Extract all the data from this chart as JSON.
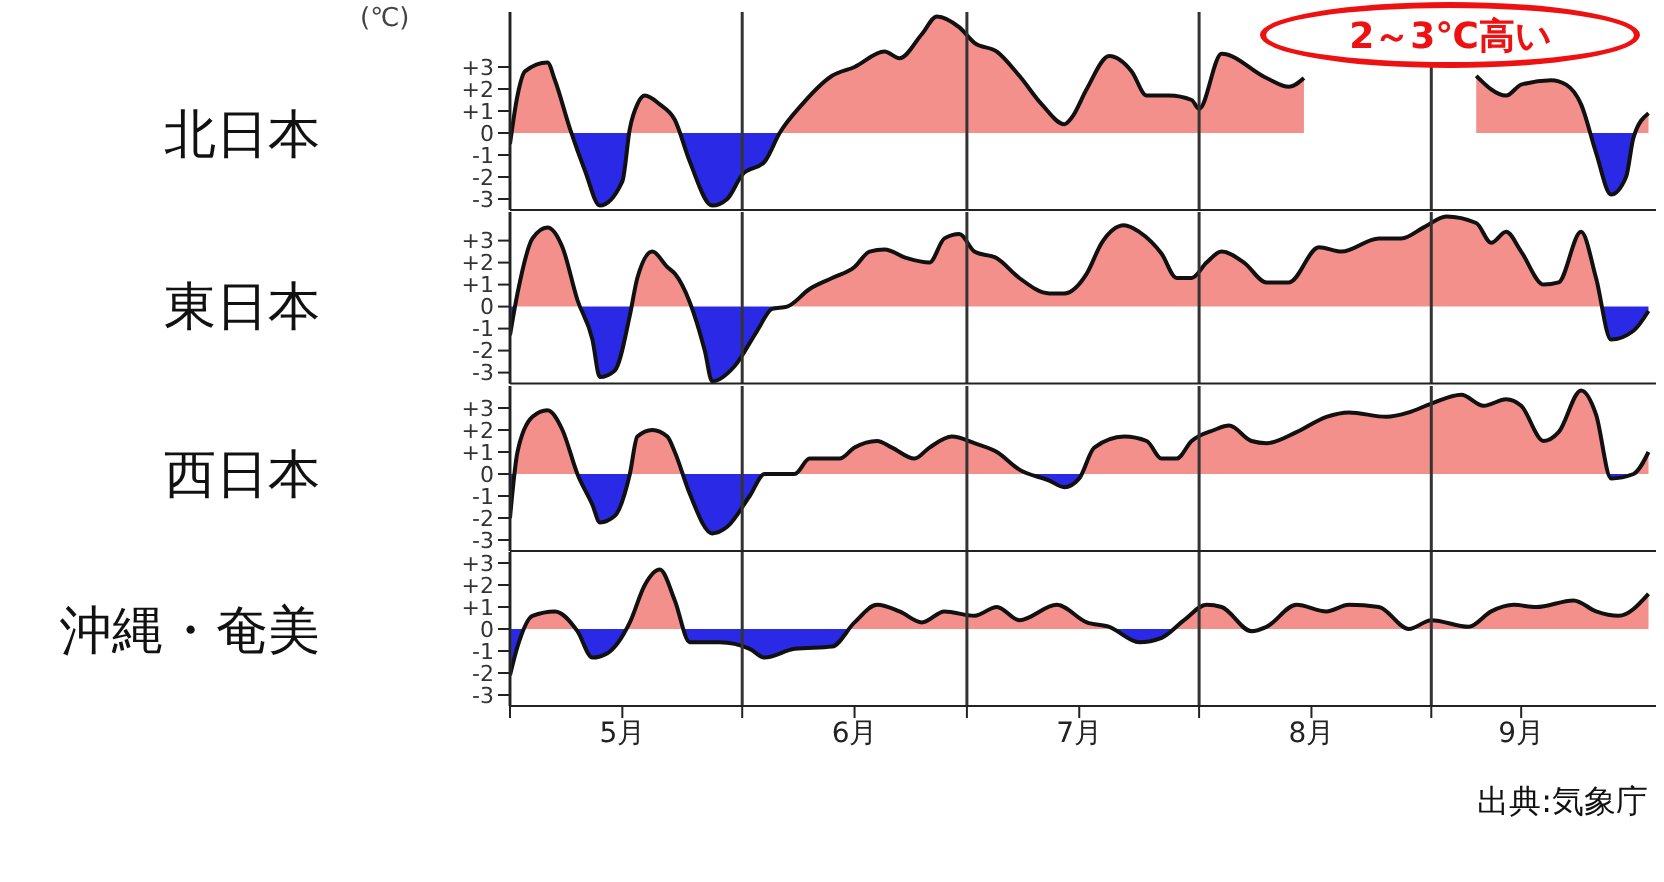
{
  "chart_data": [
    {
      "type": "area",
      "title": "北日本",
      "ylabel": "(℃)",
      "annotations": [
        "2～3℃高い"
      ],
      "grid": "x",
      "tick_labels": "y",
      "xlim": [
        "--05-01",
        "--10-01"
      ],
      "xticks": [
        {
          "value": "--05-01",
          "label": null
        },
        {
          "value": "--06-01",
          "label": null
        },
        {
          "value": "--07-01",
          "label": null
        },
        {
          "value": "--08-01",
          "label": null
        },
        {
          "value": "--09-01",
          "label": null
        }
      ],
      "ylim": [
        -3.5,
        5.5
      ],
      "yticks": [
        {
          "value": 3,
          "label": "+3"
        },
        {
          "value": 2,
          "label": "+2"
        },
        {
          "value": 1,
          "label": "+1"
        },
        0,
        -1,
        -2,
        -3
      ],
      "series": [
        {
          "colors": [
            "#2a2ae6",
            "#f4908c",
            "#f4908c",
            "#f4908c",
            "#f4908c",
            "#f4908c",
            "#2a2ae6",
            "#2a2ae6",
            "#2a2ae6",
            "#f4908c",
            "#f4908c",
            "#f4908c",
            "#f4908c",
            "#f4908c",
            "#2a2ae6",
            "#2a2ae6",
            "#2a2ae6",
            "#2a2ae6",
            "#2a2ae6",
            "#f4908c",
            "#f4908c",
            "#f4908c",
            "#f4908c",
            "#f4908c",
            "#f4908c",
            "#f4908c",
            "#f4908c",
            "#f4908c",
            "#f4908c",
            "#f4908c",
            "#f4908c",
            "#f4908c",
            "#f4908c",
            "#f4908c",
            "#f4908c",
            "#f4908c",
            "#f4908c",
            "#f4908c",
            "#f4908c",
            "#f4908c",
            "#f4908c",
            "#f4908c",
            "#f4908c",
            "#f4908c",
            "#f4908c",
            null,
            "#f4908c",
            "#f4908c",
            "#f4908c",
            "#f4908c",
            "#f4908c",
            "#f4908c",
            "#2a2ae6",
            "#2a2ae6",
            "#2a2ae6",
            "#2a2ae6",
            "#f4908c"
          ],
          "x": [
            "--05-01",
            "--05-02",
            "--05-03",
            "--05-06",
            "--05-07",
            "--05-09",
            "--05-11",
            "--05-13",
            "--05-16",
            "--05-17",
            "--05-18",
            "--05-19",
            "--05-21",
            "--05-23",
            "--05-25",
            "--05-28",
            "--05-30",
            "--06-01",
            "--06-04",
            "--06-06",
            "--06-09",
            "--06-13",
            "--06-16",
            "--06-20",
            "--06-22",
            "--06-25",
            "--06-27",
            "--06-30",
            "--07-02",
            "--07-05",
            "--07-08",
            "--07-11",
            "--07-14",
            "--07-15",
            "--07-17",
            "--07-20",
            "--07-23",
            "--07-25",
            "--07-28",
            "--07-31",
            "--08-01",
            "--08-04",
            "--08-10",
            "--08-13",
            "--08-15",
            "--08-24",
            "--09-07",
            "--09-11",
            "--09-13",
            "--09-17",
            "--09-19",
            "--09-21",
            "--09-23",
            "--09-25",
            "--09-27",
            "--09-28",
            "--09-30"
          ],
          "values": [
            -0.5,
            1.7,
            2.8,
            3.2,
            2.4,
            0.2,
            -1.7,
            -3.3,
            -2.2,
            0.2,
            1.3,
            1.7,
            1.3,
            0.6,
            -1.3,
            -3.3,
            -3.0,
            -1.9,
            -1.3,
            0,
            1.3,
            2.6,
            3.0,
            3.7,
            3.4,
            4.5,
            5.3,
            4.8,
            4.1,
            3.7,
            2.6,
            1.3,
            0.4,
            0.7,
            2.0,
            3.5,
            2.8,
            1.7,
            1.7,
            1.5,
            1.1,
            3.6,
            2.5,
            2.1,
            2.5,
            null,
            2.6,
            1.7,
            2.2,
            2.4,
            2.2,
            1.3,
            -0.9,
            -2.8,
            -2.0,
            -0.2,
            0.9
          ]
        }
      ]
    },
    {
      "type": "area",
      "title": "東日本",
      "grid": "x",
      "tick_labels": "y",
      "xlim": [
        "--05-01",
        "--10-01"
      ],
      "xticks": [
        {
          "value": "--05-01",
          "label": null
        },
        {
          "value": "--06-01",
          "label": null
        },
        {
          "value": "--07-01",
          "label": null
        },
        {
          "value": "--08-01",
          "label": null
        },
        {
          "value": "--09-01",
          "label": null
        }
      ],
      "ylim": [
        -3.5,
        4.3
      ],
      "yticks": [
        {
          "value": 3,
          "label": "+3"
        },
        {
          "value": 2,
          "label": "+2"
        },
        {
          "value": 1,
          "label": "+1"
        },
        0,
        -1,
        -2,
        -3
      ],
      "series": [
        {
          "colors": [
            "#2a2ae6",
            "#f4908c",
            "#f4908c",
            "#f4908c",
            "#f4908c",
            "#f4908c",
            "#2a2ae6",
            "#2a2ae6",
            "#2a2ae6",
            "#2a2ae6",
            "#f4908c",
            "#f4908c",
            "#f4908c",
            "#f4908c",
            "#f4908c",
            "#2a2ae6",
            "#2a2ae6",
            "#2a2ae6",
            "#2a2ae6",
            "#2a2ae6",
            "#f4908c",
            "#f4908c",
            "#f4908c",
            "#f4908c",
            "#f4908c",
            "#f4908c",
            "#f4908c",
            "#f4908c",
            "#f4908c",
            "#f4908c",
            "#f4908c",
            "#f4908c",
            "#f4908c",
            "#f4908c",
            "#f4908c",
            "#f4908c",
            "#f4908c",
            "#f4908c",
            "#f4908c",
            "#f4908c",
            "#f4908c",
            "#f4908c",
            "#f4908c",
            "#f4908c",
            "#f4908c",
            "#f4908c",
            "#f4908c",
            "#f4908c",
            "#f4908c",
            "#f4908c",
            "#f4908c",
            "#f4908c",
            "#f4908c",
            "#f4908c",
            "#f4908c",
            "#f4908c",
            "#f4908c",
            "#f4908c",
            "#f4908c",
            "#f4908c",
            "#f4908c",
            "#2a2ae6",
            "#2a2ae6",
            "#2a2ae6"
          ],
          "x": [
            "--05-01",
            "--05-02",
            "--05-04",
            "--05-06",
            "--05-08",
            "--05-10",
            "--05-12",
            "--05-13",
            "--05-15",
            "--05-17",
            "--05-18",
            "--05-20",
            "--05-22",
            "--05-23",
            "--05-25",
            "--05-27",
            "--05-28",
            "--05-31",
            "--06-03",
            "--06-05",
            "--06-07",
            "--06-10",
            "--06-13",
            "--06-16",
            "--06-18",
            "--06-20",
            "--06-23",
            "--06-26",
            "--06-28",
            "--06-30",
            "--07-02",
            "--07-05",
            "--07-08",
            "--07-12",
            "--07-14",
            "--07-17",
            "--07-19",
            "--07-22",
            "--07-24",
            "--07-27",
            "--07-29",
            "--07-31",
            "--08-02",
            "--08-04",
            "--08-07",
            "--08-10",
            "--08-13",
            "--08-17",
            "--08-20",
            "--08-25",
            "--08-28",
            "--08-31",
            "--09-03",
            "--09-07",
            "--09-09",
            "--09-11",
            "--09-13",
            "--09-16",
            "--09-18",
            "--09-21",
            "--09-23",
            "--09-25",
            "--09-28",
            "--09-30"
          ],
          "values": [
            -1.3,
            0.6,
            3.1,
            3.6,
            2.7,
            0.3,
            -1.5,
            -3.2,
            -2.9,
            -0.4,
            1.3,
            2.5,
            1.8,
            1.5,
            0.2,
            -2.0,
            -3.4,
            -2.7,
            -1.1,
            -0.1,
            0,
            0.8,
            1.3,
            1.8,
            2.5,
            2.6,
            2.2,
            2.0,
            3.1,
            3.3,
            2.5,
            2.2,
            1.3,
            0.6,
            0.6,
            1.5,
            2.9,
            3.7,
            3.4,
            2.4,
            1.3,
            1.3,
            2.0,
            2.5,
            2.0,
            1.1,
            1.1,
            2.7,
            2.5,
            3.1,
            3.1,
            3.6,
            4.1,
            3.8,
            2.9,
            3.4,
            2.5,
            1.0,
            1.1,
            3.4,
            1.3,
            -1.5,
            -1.1,
            -0.2
          ]
        }
      ]
    },
    {
      "type": "area",
      "title": "西日本",
      "grid": "x",
      "tick_labels": "y",
      "xlim": [
        "--05-01",
        "--10-01"
      ],
      "xticks": [
        {
          "value": "--05-01",
          "label": null
        },
        {
          "value": "--06-01",
          "label": null
        },
        {
          "value": "--07-01",
          "label": null
        },
        {
          "value": "--08-01",
          "label": null
        },
        {
          "value": "--09-01",
          "label": null
        }
      ],
      "ylim": [
        -3.5,
        4
      ],
      "yticks": [
        {
          "value": 3,
          "label": "+3"
        },
        {
          "value": 2,
          "label": "+2"
        },
        {
          "value": 1,
          "label": "+1"
        },
        0,
        -1,
        -2,
        -3
      ],
      "series": [
        {
          "colors": [
            "#2a2ae6",
            "#f4908c",
            "#f4908c",
            "#f4908c",
            "#f4908c",
            "#f4908c",
            "#2a2ae6",
            "#2a2ae6",
            "#2a2ae6",
            "#f4908c",
            "#f4908c",
            "#f4908c",
            "#f4908c",
            "#f4908c",
            "#2a2ae6",
            "#2a2ae6",
            "#2a2ae6",
            "#2a2ae6",
            "#f4908c",
            "#f4908c",
            "#f4908c",
            "#f4908c",
            "#f4908c",
            "#f4908c",
            "#f4908c",
            "#f4908c",
            "#f4908c",
            "#f4908c",
            "#f4908c",
            "#f4908c",
            "#f4908c",
            "#2a2ae6",
            "#2a2ae6",
            "#2a2ae6",
            "#f4908c",
            "#f4908c",
            "#f4908c",
            "#f4908c",
            "#f4908c",
            "#f4908c",
            "#f4908c",
            "#f4908c",
            "#f4908c",
            "#f4908c",
            "#f4908c",
            "#f4908c",
            "#f4908c",
            "#f4908c",
            "#f4908c",
            "#f4908c",
            "#f4908c",
            "#f4908c",
            "#f4908c",
            "#f4908c",
            "#f4908c",
            "#f4908c",
            "#f4908c",
            "#f4908c",
            "#2a2ae6",
            "#f4908c",
            "#f4908c"
          ],
          "x": [
            "--05-01",
            "--05-02",
            "--05-04",
            "--05-06",
            "--05-08",
            "--05-10",
            "--05-12",
            "--05-13",
            "--05-15",
            "--05-17",
            "--05-18",
            "--05-20",
            "--05-22",
            "--05-23",
            "--05-25",
            "--05-28",
            "--05-30",
            "--06-02",
            "--06-04",
            "--06-08",
            "--06-10",
            "--06-14",
            "--06-16",
            "--06-19",
            "--06-21",
            "--06-24",
            "--06-26",
            "--06-29",
            "--07-02",
            "--07-05",
            "--07-08",
            "--07-12",
            "--07-14",
            "--07-16",
            "--07-18",
            "--07-22",
            "--07-25",
            "--07-27",
            "--07-29",
            "--07-31",
            "--08-03",
            "--08-05",
            "--08-08",
            "--08-10",
            "--08-14",
            "--08-18",
            "--08-21",
            "--08-26",
            "--08-29",
            "--09-01",
            "--09-05",
            "--09-08",
            "--09-11",
            "--09-13",
            "--09-16",
            "--09-18",
            "--09-21",
            "--09-23",
            "--09-25",
            "--09-28",
            "--09-30"
          ],
          "values": [
            -2.0,
            1.0,
            2.6,
            2.9,
            2.0,
            0,
            -1.4,
            -2.2,
            -1.9,
            0,
            1.7,
            2.0,
            1.7,
            1.0,
            -0.9,
            -2.7,
            -2.4,
            -1.0,
            0,
            0,
            0.7,
            0.7,
            1.2,
            1.5,
            1.2,
            0.7,
            1.2,
            1.7,
            1.4,
            1.0,
            0.2,
            -0.3,
            -0.6,
            -0.2,
            1.2,
            1.7,
            1.5,
            0.7,
            0.7,
            1.5,
            2.0,
            2.2,
            1.5,
            1.4,
            1.9,
            2.6,
            2.8,
            2.6,
            2.8,
            3.2,
            3.6,
            3.1,
            3.4,
            3.1,
            1.5,
            1.9,
            3.8,
            2.7,
            -0.2,
            0,
            1.0
          ]
        }
      ]
    },
    {
      "type": "area",
      "title": "沖縄・奄美",
      "annotations": [
        "出典:気象庁"
      ],
      "grid": "x",
      "xlim": [
        "--05-01",
        "--10-01"
      ],
      "xticks": [
        {
          "value": "--05-01",
          "label": null
        },
        {
          "value": "--05-16",
          "label": "5月"
        },
        {
          "value": "--06-01",
          "label": null
        },
        {
          "value": "--06-16",
          "label": "6月"
        },
        {
          "value": "--07-01",
          "label": null
        },
        {
          "value": "--07-16",
          "label": "7月"
        },
        {
          "value": "--08-01",
          "label": null
        },
        {
          "value": "--08-16",
          "label": "8月"
        },
        {
          "value": "--09-01",
          "label": null
        },
        {
          "value": "--09-13",
          "label": "9月"
        }
      ],
      "ylim": [
        -3.5,
        3.5
      ],
      "yticks": [
        {
          "value": 3,
          "label": "+3"
        },
        {
          "value": 2,
          "label": "+2"
        },
        {
          "value": 1,
          "label": "+1"
        },
        0,
        -1,
        -2,
        -3
      ],
      "series": [
        {
          "colors": [
            "#2a2ae6",
            "#2a2ae6",
            "#f4908c",
            "#f4908c",
            "#2a2ae6",
            "#2a2ae6",
            "#2a2ae6",
            "#f4908c",
            "#f4908c",
            "#f4908c",
            "#f4908c",
            "#2a2ae6",
            "#2a2ae6",
            "#2a2ae6",
            "#2a2ae6",
            "#2a2ae6",
            "#2a2ae6",
            "#f4908c",
            "#f4908c",
            "#f4908c",
            "#f4908c",
            "#f4908c",
            "#f4908c",
            "#f4908c",
            "#f4908c",
            "#f4908c",
            "#f4908c",
            "#f4908c",
            "#2a2ae6",
            "#2a2ae6",
            "#f4908c",
            "#f4908c",
            "#f4908c",
            "#2a2ae6",
            "#f4908c",
            "#f4908c",
            "#f4908c",
            "#f4908c",
            "#f4908c",
            "#f4908c",
            "#f4908c",
            "#f4908c",
            "#f4908c",
            "#f4908c",
            "#f4908c",
            "#f4908c",
            "#f4908c",
            "#f4908c",
            "#f4908c"
          ],
          "x": [
            "--05-01",
            "--05-02",
            "--05-04",
            "--05-07",
            "--05-10",
            "--05-12",
            "--05-14",
            "--05-17",
            "--05-19",
            "--05-21",
            "--05-23",
            "--05-25",
            "--05-29",
            "--06-02",
            "--06-04",
            "--06-08",
            "--06-13",
            "--06-16",
            "--06-19",
            "--06-22",
            "--06-25",
            "--06-28",
            "--07-02",
            "--07-05",
            "--07-08",
            "--07-13",
            "--07-17",
            "--07-20",
            "--07-24",
            "--07-27",
            "--07-30",
            "--08-02",
            "--08-04",
            "--08-08",
            "--08-10",
            "--08-14",
            "--08-18",
            "--08-21",
            "--08-25",
            "--08-29",
            "--09-01",
            "--09-06",
            "--09-09",
            "--09-12",
            "--09-15",
            "--09-20",
            "--09-23",
            "--09-26",
            "--09-30"
          ],
          "values": [
            -2.1,
            -0.8,
            0.6,
            0.8,
            -0.1,
            -1.3,
            -1.1,
            0.3,
            2.0,
            2.7,
            1.3,
            -0.6,
            -0.6,
            -0.9,
            -1.3,
            -0.9,
            -0.8,
            0.3,
            1.1,
            0.8,
            0.3,
            0.8,
            0.6,
            1.0,
            0.4,
            1.1,
            0.3,
            0.1,
            -0.6,
            -0.4,
            0.4,
            1.1,
            1.0,
            -0.1,
            0.1,
            1.1,
            0.8,
            1.1,
            1.0,
            0,
            0.4,
            0.1,
            0.8,
            1.1,
            1.0,
            1.3,
            0.8,
            0.6,
            1.6
          ]
        }
      ]
    }
  ]
}
